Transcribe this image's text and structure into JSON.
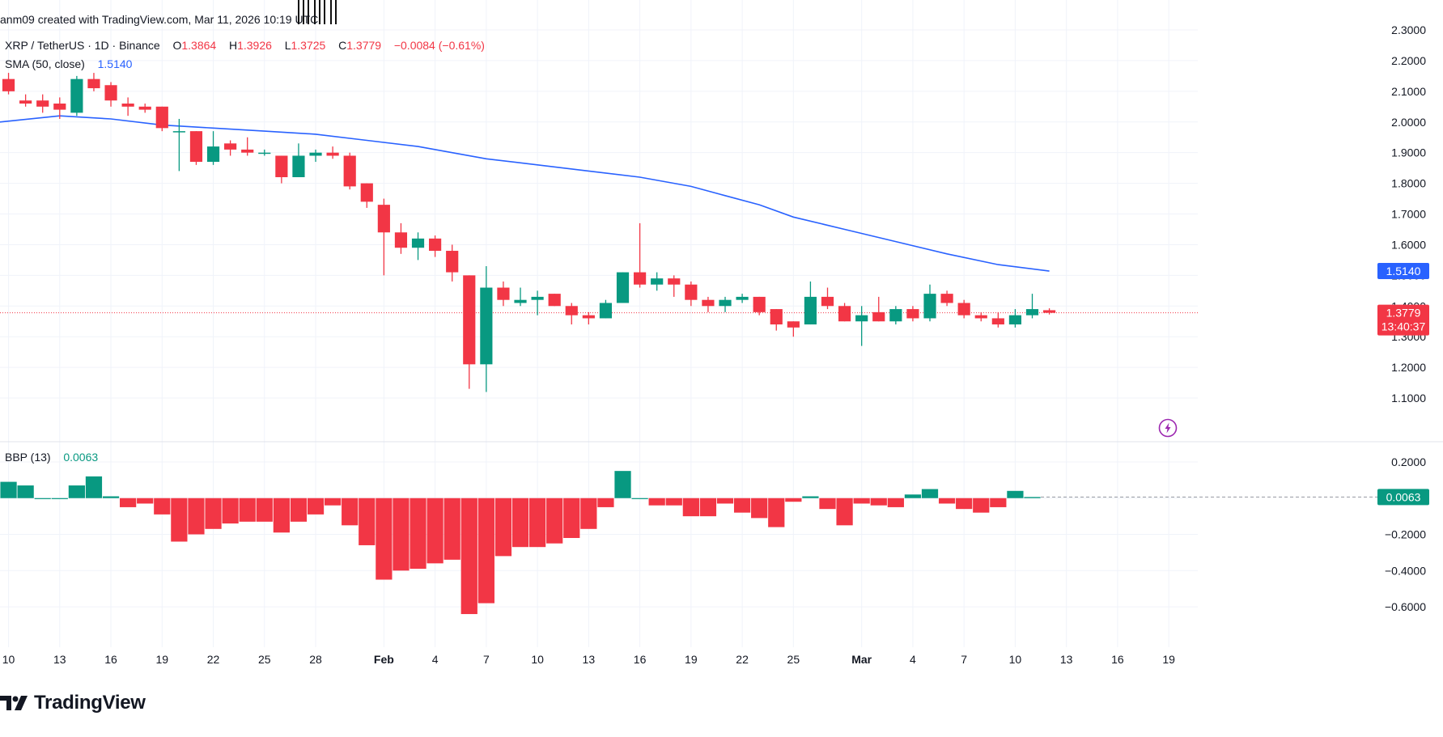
{
  "header": {
    "credit": "anm09 created with TradingView.com, Mar 11, 2026 10:19 UTC",
    "symbol": "XRP / TetherUS · 1D · Binance",
    "open_label": "O",
    "open": "1.3864",
    "high_label": "H",
    "high": "1.3926",
    "low_label": "L",
    "low": "1.3725",
    "close_label": "C",
    "close": "1.3779",
    "change": "−0.0084 (−0.61%)",
    "sma_label": "SMA (50, close)",
    "sma_value": "1.5140",
    "bbp_label": "BBP (13)",
    "bbp_value": "0.0063"
  },
  "brand": {
    "name": "TradingView"
  },
  "colors": {
    "up": "#089981",
    "down": "#f23645",
    "sma": "#2962ff",
    "background": "#ffffff",
    "axis_text": "#131722"
  },
  "chart_data": [
    {
      "type": "candlestick",
      "title": "XRP / TetherUS · 1D · Binance",
      "ylim": [
        1.05,
        2.3
      ],
      "y_ticks": [
        "2.3000",
        "2.2000",
        "2.1000",
        "2.0000",
        "1.9000",
        "1.8000",
        "1.7000",
        "1.6000",
        "1.5000",
        "1.4000",
        "1.3000",
        "1.2000",
        "1.1000"
      ],
      "x_tick_labels": [
        {
          "label": "10",
          "day": 0
        },
        {
          "label": "13",
          "day": 3
        },
        {
          "label": "16",
          "day": 6
        },
        {
          "label": "19",
          "day": 9
        },
        {
          "label": "22",
          "day": 12
        },
        {
          "label": "25",
          "day": 15
        },
        {
          "label": "28",
          "day": 18
        },
        {
          "label": "Feb",
          "day": 22
        },
        {
          "label": "4",
          "day": 25
        },
        {
          "label": "7",
          "day": 28
        },
        {
          "label": "10",
          "day": 31
        },
        {
          "label": "13",
          "day": 34
        },
        {
          "label": "16",
          "day": 37
        },
        {
          "label": "19",
          "day": 40
        },
        {
          "label": "22",
          "day": 43
        },
        {
          "label": "25",
          "day": 46
        },
        {
          "label": "Mar",
          "day": 50
        },
        {
          "label": "4",
          "day": 53
        },
        {
          "label": "7",
          "day": 56
        },
        {
          "label": "10",
          "day": 59
        },
        {
          "label": "13",
          "day": 62
        },
        {
          "label": "16",
          "day": 65
        },
        {
          "label": "19",
          "day": 68
        }
      ],
      "x_day_range": [
        -0.5,
        69.7
      ],
      "candles": [
        {
          "o": 2.14,
          "h": 2.16,
          "l": 2.09,
          "c": 2.1
        },
        {
          "o": 2.07,
          "h": 2.09,
          "l": 2.05,
          "c": 2.06
        },
        {
          "o": 2.07,
          "h": 2.09,
          "l": 2.03,
          "c": 2.05
        },
        {
          "o": 2.06,
          "h": 2.08,
          "l": 2.01,
          "c": 2.04
        },
        {
          "o": 2.03,
          "h": 2.15,
          "l": 2.02,
          "c": 2.14
        },
        {
          "o": 2.14,
          "h": 2.16,
          "l": 2.1,
          "c": 2.11
        },
        {
          "o": 2.12,
          "h": 2.13,
          "l": 2.05,
          "c": 2.07
        },
        {
          "o": 2.06,
          "h": 2.08,
          "l": 2.02,
          "c": 2.05
        },
        {
          "o": 2.05,
          "h": 2.06,
          "l": 2.03,
          "c": 2.04
        },
        {
          "o": 2.05,
          "h": 2.05,
          "l": 1.97,
          "c": 1.98
        },
        {
          "o": 1.97,
          "h": 2.01,
          "l": 1.84,
          "c": 1.97
        },
        {
          "o": 1.97,
          "h": 1.97,
          "l": 1.86,
          "c": 1.87
        },
        {
          "o": 1.87,
          "h": 1.97,
          "l": 1.86,
          "c": 1.92
        },
        {
          "o": 1.93,
          "h": 1.94,
          "l": 1.89,
          "c": 1.91
        },
        {
          "o": 1.91,
          "h": 1.95,
          "l": 1.89,
          "c": 1.9
        },
        {
          "o": 1.9,
          "h": 1.91,
          "l": 1.89,
          "c": 1.9
        },
        {
          "o": 1.89,
          "h": 1.89,
          "l": 1.8,
          "c": 1.82
        },
        {
          "o": 1.82,
          "h": 1.93,
          "l": 1.82,
          "c": 1.89
        },
        {
          "o": 1.89,
          "h": 1.91,
          "l": 1.87,
          "c": 1.9
        },
        {
          "o": 1.9,
          "h": 1.92,
          "l": 1.88,
          "c": 1.89
        },
        {
          "o": 1.89,
          "h": 1.9,
          "l": 1.78,
          "c": 1.79
        },
        {
          "o": 1.8,
          "h": 1.8,
          "l": 1.72,
          "c": 1.74
        },
        {
          "o": 1.73,
          "h": 1.75,
          "l": 1.5,
          "c": 1.64
        },
        {
          "o": 1.64,
          "h": 1.67,
          "l": 1.57,
          "c": 1.59
        },
        {
          "o": 1.59,
          "h": 1.64,
          "l": 1.55,
          "c": 1.62
        },
        {
          "o": 1.62,
          "h": 1.63,
          "l": 1.56,
          "c": 1.58
        },
        {
          "o": 1.58,
          "h": 1.6,
          "l": 1.48,
          "c": 1.51
        },
        {
          "o": 1.5,
          "h": 1.5,
          "l": 1.13,
          "c": 1.21
        },
        {
          "o": 1.21,
          "h": 1.53,
          "l": 1.12,
          "c": 1.46
        },
        {
          "o": 1.46,
          "h": 1.48,
          "l": 1.4,
          "c": 1.42
        },
        {
          "o": 1.41,
          "h": 1.46,
          "l": 1.4,
          "c": 1.42
        },
        {
          "o": 1.42,
          "h": 1.45,
          "l": 1.37,
          "c": 1.43
        },
        {
          "o": 1.44,
          "h": 1.44,
          "l": 1.4,
          "c": 1.4
        },
        {
          "o": 1.4,
          "h": 1.41,
          "l": 1.34,
          "c": 1.37
        },
        {
          "o": 1.37,
          "h": 1.38,
          "l": 1.34,
          "c": 1.36
        },
        {
          "o": 1.36,
          "h": 1.42,
          "l": 1.36,
          "c": 1.41
        },
        {
          "o": 1.41,
          "h": 1.51,
          "l": 1.41,
          "c": 1.51
        },
        {
          "o": 1.51,
          "h": 1.67,
          "l": 1.46,
          "c": 1.47
        },
        {
          "o": 1.47,
          "h": 1.51,
          "l": 1.45,
          "c": 1.49
        },
        {
          "o": 1.49,
          "h": 1.5,
          "l": 1.43,
          "c": 1.47
        },
        {
          "o": 1.47,
          "h": 1.48,
          "l": 1.4,
          "c": 1.42
        },
        {
          "o": 1.42,
          "h": 1.43,
          "l": 1.38,
          "c": 1.4
        },
        {
          "o": 1.4,
          "h": 1.43,
          "l": 1.38,
          "c": 1.42
        },
        {
          "o": 1.42,
          "h": 1.44,
          "l": 1.41,
          "c": 1.43
        },
        {
          "o": 1.43,
          "h": 1.43,
          "l": 1.37,
          "c": 1.38
        },
        {
          "o": 1.39,
          "h": 1.39,
          "l": 1.32,
          "c": 1.34
        },
        {
          "o": 1.35,
          "h": 1.35,
          "l": 1.3,
          "c": 1.33
        },
        {
          "o": 1.34,
          "h": 1.48,
          "l": 1.34,
          "c": 1.43
        },
        {
          "o": 1.43,
          "h": 1.46,
          "l": 1.39,
          "c": 1.4
        },
        {
          "o": 1.4,
          "h": 1.41,
          "l": 1.35,
          "c": 1.35
        },
        {
          "o": 1.35,
          "h": 1.4,
          "l": 1.27,
          "c": 1.37
        },
        {
          "o": 1.38,
          "h": 1.43,
          "l": 1.35,
          "c": 1.35
        },
        {
          "o": 1.35,
          "h": 1.4,
          "l": 1.34,
          "c": 1.39
        },
        {
          "o": 1.39,
          "h": 1.4,
          "l": 1.35,
          "c": 1.36
        },
        {
          "o": 1.36,
          "h": 1.47,
          "l": 1.35,
          "c": 1.44
        },
        {
          "o": 1.44,
          "h": 1.45,
          "l": 1.4,
          "c": 1.41
        },
        {
          "o": 1.41,
          "h": 1.42,
          "l": 1.36,
          "c": 1.37
        },
        {
          "o": 1.37,
          "h": 1.38,
          "l": 1.35,
          "c": 1.36
        },
        {
          "o": 1.36,
          "h": 1.38,
          "l": 1.33,
          "c": 1.34
        },
        {
          "o": 1.34,
          "h": 1.39,
          "l": 1.33,
          "c": 1.37
        },
        {
          "o": 1.37,
          "h": 1.44,
          "l": 1.36,
          "c": 1.39
        },
        {
          "o": 1.3864,
          "h": 1.3926,
          "l": 1.3725,
          "c": 1.3779
        }
      ],
      "sma": {
        "name": "SMA (50, close)",
        "points": [
          [
            -0.5,
            2.0
          ],
          [
            3,
            2.02
          ],
          [
            6,
            2.01
          ],
          [
            9,
            1.99
          ],
          [
            12,
            1.98
          ],
          [
            15,
            1.97
          ],
          [
            18,
            1.96
          ],
          [
            21,
            1.94
          ],
          [
            24,
            1.92
          ],
          [
            26,
            1.9
          ],
          [
            28,
            1.88
          ],
          [
            31,
            1.86
          ],
          [
            34,
            1.84
          ],
          [
            37,
            1.82
          ],
          [
            40,
            1.79
          ],
          [
            42,
            1.76
          ],
          [
            44,
            1.73
          ],
          [
            46,
            1.69
          ],
          [
            49,
            1.65
          ],
          [
            52,
            1.61
          ],
          [
            55,
            1.57
          ],
          [
            58,
            1.535
          ],
          [
            61,
            1.514
          ]
        ]
      },
      "last_price": "1.3779",
      "countdown": "13:40:37",
      "sma_last": "1.5140"
    },
    {
      "type": "bar",
      "title": "BBP (13)",
      "ylim": [
        -0.68,
        0.24
      ],
      "y_ticks": [
        "0.2000",
        "0.0000",
        "−0.2000",
        "−0.4000",
        "−0.6000"
      ],
      "values": [
        0.09,
        0.07,
        0.0,
        0.0,
        0.07,
        0.12,
        0.01,
        -0.05,
        -0.03,
        -0.09,
        -0.24,
        -0.2,
        -0.17,
        -0.14,
        -0.13,
        -0.13,
        -0.19,
        -0.13,
        -0.09,
        -0.04,
        -0.15,
        -0.26,
        -0.45,
        -0.4,
        -0.39,
        -0.36,
        -0.34,
        -0.64,
        -0.58,
        -0.32,
        -0.27,
        -0.27,
        -0.25,
        -0.22,
        -0.17,
        -0.05,
        0.15,
        0.0,
        -0.04,
        -0.04,
        -0.1,
        -0.1,
        -0.03,
        -0.08,
        -0.11,
        -0.16,
        -0.02,
        0.01,
        -0.06,
        -0.15,
        -0.03,
        -0.04,
        -0.05,
        0.02,
        0.05,
        -0.03,
        -0.06,
        -0.08,
        -0.05,
        0.04,
        0.0063
      ],
      "last_value": "0.0063"
    }
  ]
}
